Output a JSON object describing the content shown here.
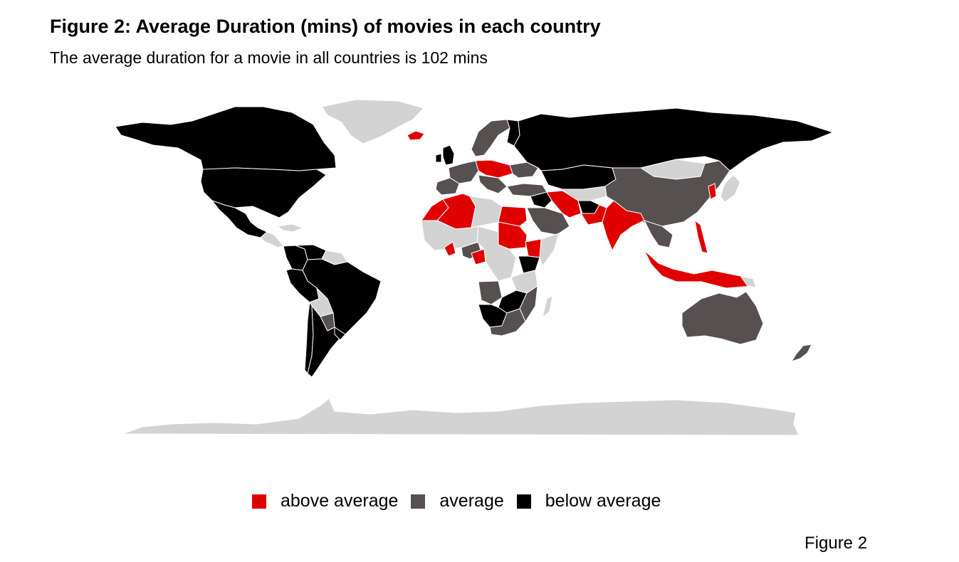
{
  "title": "Figure 2: Average Duration (mins) of movies in each country",
  "subtitle": "The average duration for a movie in all countries is 102 mins",
  "caption": "Figure 2",
  "colors": {
    "above": "#e00000",
    "average": "#575050",
    "below": "#000000",
    "nodata": "#d3d3d3"
  },
  "legend": [
    {
      "key": "above",
      "label": "above average"
    },
    {
      "key": "average",
      "label": "average"
    },
    {
      "key": "below",
      "label": "below average"
    }
  ],
  "countries": {
    "greenland": "nodata",
    "canada": "below",
    "usa": "below",
    "mexico": "below",
    "central-america": "nodata",
    "caribbean": "nodata",
    "colombia": "below",
    "venezuela": "below",
    "guianas": "nodata",
    "brazil": "below",
    "peru": "below",
    "bolivia": "nodata",
    "paraguay": "average",
    "chile": "below",
    "argentina": "below",
    "uruguay": "below",
    "iceland": "above",
    "uk": "below",
    "ireland": "below",
    "scandinavia": "average",
    "finland": "below",
    "west-europe": "average",
    "iberia": "average",
    "central-europe": "above",
    "balkans": "average",
    "ukraine": "average",
    "russia": "below",
    "kazakhstan": "below",
    "turkey": "average",
    "morocco": "above",
    "algeria": "above",
    "libya": "nodata",
    "egypt": "above",
    "sudan": "above",
    "ethiopia": "above",
    "somalia": "nodata",
    "kenya": "below",
    "west-africa": "nodata",
    "ghana": "above",
    "nigeria": "average",
    "cameroon": "above",
    "central-africa": "nodata",
    "angola": "average",
    "tanzania": "nodata",
    "mozambique": "average",
    "zambia-zimbabwe": "below",
    "namibia-botswana": "below",
    "south-africa": "average",
    "madagascar": "nodata",
    "saudi-arabia": "average",
    "iran": "above",
    "iraq": "below",
    "afghanistan": "below",
    "pakistan": "above",
    "india": "above",
    "central-asia": "nodata",
    "mongolia": "nodata",
    "china": "average",
    "korea": "above",
    "japan": "nodata",
    "southeast-asia": "average",
    "philippines": "above",
    "indonesia": "above",
    "papua": "nodata",
    "australia": "average",
    "new-zealand": "average",
    "antarctica": "nodata"
  }
}
